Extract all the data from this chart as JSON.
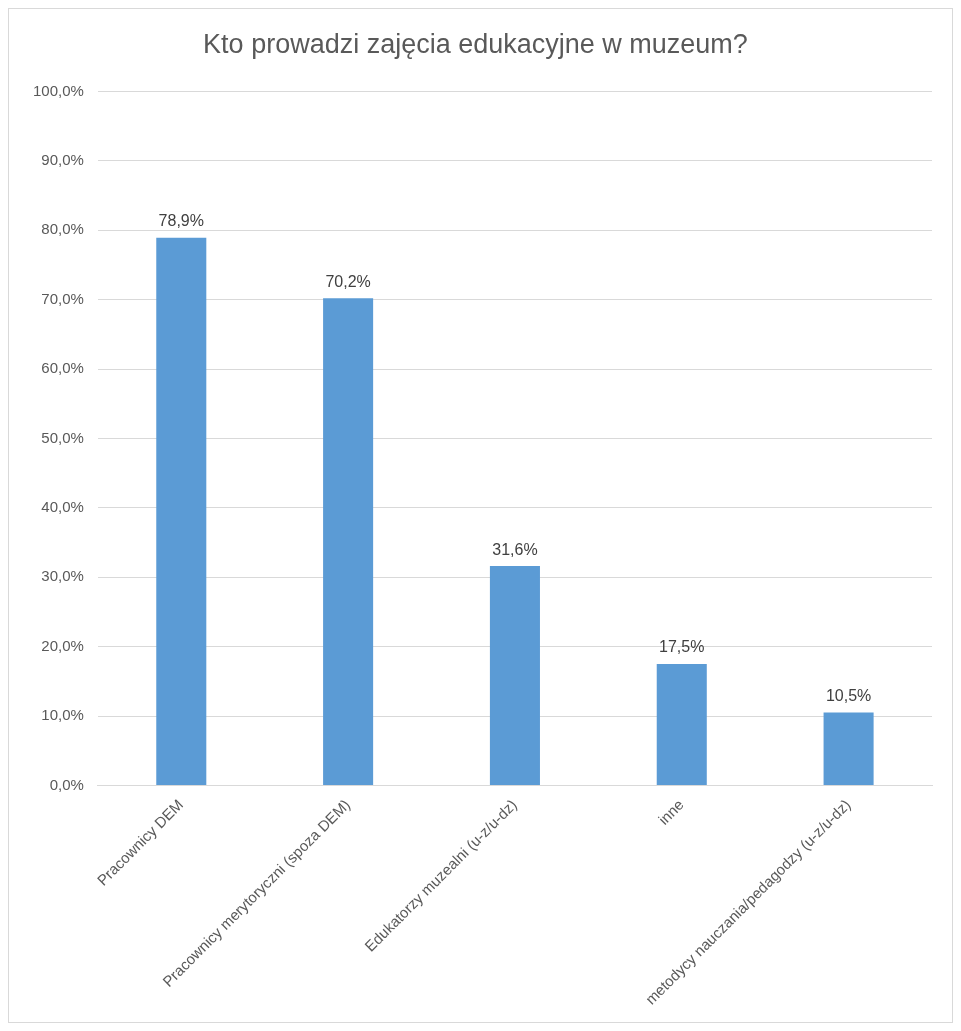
{
  "chart_data": {
    "type": "bar",
    "title": "Kto prowadzi zajęcia edukacyjne w muzeum?",
    "categories": [
      "Pracownicy DEM",
      "Pracownicy merytoryczni (spoza DEM)",
      "Edukatorzy muzealni (u-z/u-dz)",
      "inne",
      "metodycy nauczania/pedagodzy (u-z/u-dz)"
    ],
    "values": [
      78.9,
      70.2,
      31.6,
      17.5,
      10.5
    ],
    "value_labels": [
      "78,9%",
      "70,2%",
      "31,6%",
      "17,5%",
      "10,5%"
    ],
    "color": "#5b9bd5",
    "ylim": [
      0,
      100
    ],
    "yticks": [
      {
        "value": 0,
        "label": "0,0%"
      },
      {
        "value": 10,
        "label": "10,0%"
      },
      {
        "value": 20,
        "label": "20,0%"
      },
      {
        "value": 30,
        "label": "30,0%"
      },
      {
        "value": 40,
        "label": "40,0%"
      },
      {
        "value": 50,
        "label": "50,0%"
      },
      {
        "value": 60,
        "label": "60,0%"
      },
      {
        "value": 70,
        "label": "70,0%"
      },
      {
        "value": 80,
        "label": "80,0%"
      },
      {
        "value": 90,
        "label": "90,0%"
      },
      {
        "value": 100,
        "label": "100,0%"
      }
    ],
    "grid": "y",
    "legend": false
  }
}
